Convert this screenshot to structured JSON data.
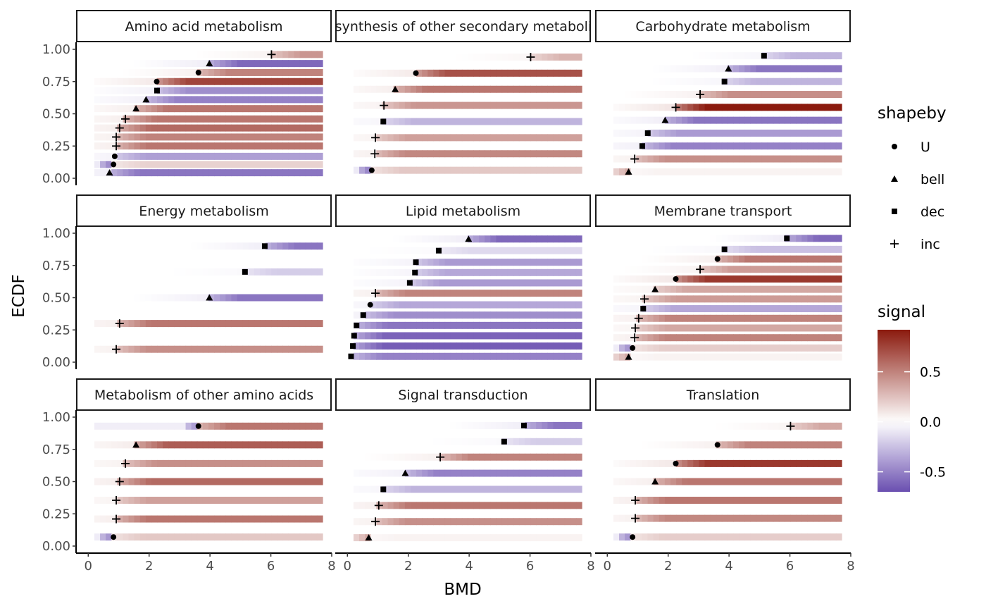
{
  "chart_data": {
    "type": "heatmap",
    "xlabel": "BMD",
    "ylabel": "ECDF",
    "xlim": [
      -0.4,
      8.0
    ],
    "ylim": [
      0.0,
      1.0
    ],
    "x_ticks": [
      "0",
      "2",
      "4",
      "6",
      "8"
    ],
    "y_ticks": [
      "0.00",
      "0.25",
      "0.50",
      "0.75",
      "1.00"
    ],
    "x_range": [
      0.2,
      7.7
    ],
    "grid": false,
    "legend_position": "right",
    "shape_legend": {
      "title": "shapeby",
      "entries": [
        {
          "label": "U",
          "shape": "circle"
        },
        {
          "label": "bell",
          "shape": "triangle"
        },
        {
          "label": "dec",
          "shape": "square"
        },
        {
          "label": "inc",
          "shape": "plus"
        }
      ]
    },
    "color_legend": {
      "title": "signal",
      "min": -0.7,
      "max": 0.92,
      "ticks": [
        0.5,
        0.0,
        -0.5
      ],
      "tick_labels": [
        "0.5",
        "0.0",
        "-0.5"
      ],
      "low_color": "#6a4fb0",
      "mid_color": "#ffffff",
      "high_color": "#8b1a0e"
    },
    "panels": [
      {
        "title": "Amino acid metabolism",
        "rows": [
          {
            "y": 0.043,
            "bmd": 0.7,
            "shape": "bell",
            "signal": -0.55
          },
          {
            "y": 0.107,
            "bmd": 0.83,
            "shape": "U",
            "signal": 0.18,
            "pre": -0.55
          },
          {
            "y": 0.17,
            "bmd": 0.87,
            "shape": "U",
            "signal": -0.38
          },
          {
            "y": 0.25,
            "bmd": 0.92,
            "shape": "inc",
            "signal": 0.55
          },
          {
            "y": 0.32,
            "bmd": 0.92,
            "shape": "inc",
            "signal": 0.5
          },
          {
            "y": 0.39,
            "bmd": 1.03,
            "shape": "inc",
            "signal": 0.6
          },
          {
            "y": 0.46,
            "bmd": 1.22,
            "shape": "inc",
            "signal": 0.55
          },
          {
            "y": 0.54,
            "bmd": 1.57,
            "shape": "bell",
            "signal": 0.55
          },
          {
            "y": 0.61,
            "bmd": 1.9,
            "shape": "bell",
            "signal": -0.5
          },
          {
            "y": 0.68,
            "bmd": 2.26,
            "shape": "dec",
            "signal": -0.45
          },
          {
            "y": 0.75,
            "bmd": 2.25,
            "shape": "U",
            "signal": 0.75
          },
          {
            "y": 0.82,
            "bmd": 3.62,
            "shape": "U",
            "signal": 0.5
          },
          {
            "y": 0.89,
            "bmd": 3.98,
            "shape": "bell",
            "signal": -0.6
          },
          {
            "y": 0.96,
            "bmd": 6.02,
            "shape": "inc",
            "signal": 0.42
          }
        ]
      },
      {
        "title": "Biosynthesis of other secondary metabolites",
        "rows": [
          {
            "y": 0.062,
            "bmd": 0.8,
            "shape": "U",
            "signal": 0.22,
            "pre": -0.55
          },
          {
            "y": 0.19,
            "bmd": 0.9,
            "shape": "inc",
            "signal": 0.48
          },
          {
            "y": 0.315,
            "bmd": 0.92,
            "shape": "inc",
            "signal": 0.38
          },
          {
            "y": 0.44,
            "bmd": 1.18,
            "shape": "dec",
            "signal": -0.3
          },
          {
            "y": 0.565,
            "bmd": 1.2,
            "shape": "inc",
            "signal": 0.42
          },
          {
            "y": 0.69,
            "bmd": 1.57,
            "shape": "bell",
            "signal": 0.55
          },
          {
            "y": 0.815,
            "bmd": 2.25,
            "shape": "U",
            "signal": 0.7
          },
          {
            "y": 0.94,
            "bmd": 6.02,
            "shape": "inc",
            "signal": 0.3
          }
        ]
      },
      {
        "title": "Carbohydrate metabolism",
        "rows": [
          {
            "y": 0.05,
            "bmd": 0.7,
            "shape": "bell",
            "signal": 0.05,
            "pre": 0.35
          },
          {
            "y": 0.15,
            "bmd": 0.9,
            "shape": "inc",
            "signal": 0.45
          },
          {
            "y": 0.25,
            "bmd": 1.15,
            "shape": "dec",
            "signal": -0.5
          },
          {
            "y": 0.35,
            "bmd": 1.33,
            "shape": "dec",
            "signal": -0.4
          },
          {
            "y": 0.45,
            "bmd": 1.9,
            "shape": "bell",
            "signal": -0.55
          },
          {
            "y": 0.55,
            "bmd": 2.25,
            "shape": "inc",
            "signal": 0.92
          },
          {
            "y": 0.65,
            "bmd": 3.05,
            "shape": "inc",
            "signal": 0.45
          },
          {
            "y": 0.75,
            "bmd": 3.85,
            "shape": "dec",
            "signal": -0.3
          },
          {
            "y": 0.85,
            "bmd": 3.98,
            "shape": "bell",
            "signal": -0.55
          },
          {
            "y": 0.95,
            "bmd": 5.15,
            "shape": "dec",
            "signal": -0.3
          }
        ]
      },
      {
        "title": "Energy metabolism",
        "rows": [
          {
            "y": 0.1,
            "bmd": 0.92,
            "shape": "inc",
            "signal": 0.45
          },
          {
            "y": 0.3,
            "bmd": 1.03,
            "shape": "inc",
            "signal": 0.55
          },
          {
            "y": 0.5,
            "bmd": 3.98,
            "shape": "bell",
            "signal": -0.55
          },
          {
            "y": 0.7,
            "bmd": 5.15,
            "shape": "dec",
            "signal": -0.2
          },
          {
            "y": 0.9,
            "bmd": 5.8,
            "shape": "dec",
            "signal": -0.55
          }
        ]
      },
      {
        "title": "Lipid metabolism",
        "rows": [
          {
            "y": 0.045,
            "bmd": 0.12,
            "shape": "dec",
            "signal": -0.5
          },
          {
            "y": 0.125,
            "bmd": 0.18,
            "shape": "dec",
            "signal": -0.65
          },
          {
            "y": 0.205,
            "bmd": 0.22,
            "shape": "dec",
            "signal": -0.62
          },
          {
            "y": 0.285,
            "bmd": 0.3,
            "shape": "dec",
            "signal": -0.55
          },
          {
            "y": 0.365,
            "bmd": 0.52,
            "shape": "dec",
            "signal": -0.45
          },
          {
            "y": 0.445,
            "bmd": 0.75,
            "shape": "U",
            "signal": -0.35
          },
          {
            "y": 0.535,
            "bmd": 0.92,
            "shape": "inc",
            "signal": 0.5
          },
          {
            "y": 0.615,
            "bmd": 2.05,
            "shape": "dec",
            "signal": -0.4
          },
          {
            "y": 0.695,
            "bmd": 2.22,
            "shape": "dec",
            "signal": -0.35
          },
          {
            "y": 0.775,
            "bmd": 2.25,
            "shape": "dec",
            "signal": -0.4
          },
          {
            "y": 0.865,
            "bmd": 3.0,
            "shape": "dec",
            "signal": -0.15
          },
          {
            "y": 0.955,
            "bmd": 3.98,
            "shape": "bell",
            "signal": -0.6
          }
        ]
      },
      {
        "title": "Membrane transport",
        "rows": [
          {
            "y": 0.04,
            "bmd": 0.7,
            "shape": "bell",
            "signal": 0.05,
            "pre": 0.35
          },
          {
            "y": 0.11,
            "bmd": 0.83,
            "shape": "U",
            "signal": 0.2,
            "pre": -0.5
          },
          {
            "y": 0.19,
            "bmd": 0.9,
            "shape": "inc",
            "signal": 0.5
          },
          {
            "y": 0.265,
            "bmd": 0.92,
            "shape": "inc",
            "signal": 0.35
          },
          {
            "y": 0.34,
            "bmd": 1.03,
            "shape": "inc",
            "signal": 0.5
          },
          {
            "y": 0.415,
            "bmd": 1.18,
            "shape": "dec",
            "signal": -0.35
          },
          {
            "y": 0.49,
            "bmd": 1.22,
            "shape": "inc",
            "signal": 0.4
          },
          {
            "y": 0.565,
            "bmd": 1.57,
            "shape": "bell",
            "signal": 0.35
          },
          {
            "y": 0.645,
            "bmd": 2.25,
            "shape": "U",
            "signal": 0.8
          },
          {
            "y": 0.72,
            "bmd": 3.05,
            "shape": "inc",
            "signal": 0.4
          },
          {
            "y": 0.8,
            "bmd": 3.62,
            "shape": "U",
            "signal": 0.55
          },
          {
            "y": 0.875,
            "bmd": 3.85,
            "shape": "dec",
            "signal": -0.25
          },
          {
            "y": 0.96,
            "bmd": 5.9,
            "shape": "dec",
            "signal": -0.6
          }
        ]
      },
      {
        "title": "Metabolism of other amino acids",
        "rows": [
          {
            "y": 0.07,
            "bmd": 0.83,
            "shape": "U",
            "signal": 0.22,
            "pre": -0.5
          },
          {
            "y": 0.21,
            "bmd": 0.92,
            "shape": "inc",
            "signal": 0.55
          },
          {
            "y": 0.355,
            "bmd": 0.92,
            "shape": "inc",
            "signal": 0.38
          },
          {
            "y": 0.5,
            "bmd": 1.03,
            "shape": "inc",
            "signal": 0.6
          },
          {
            "y": 0.64,
            "bmd": 1.22,
            "shape": "inc",
            "signal": 0.45
          },
          {
            "y": 0.785,
            "bmd": 1.57,
            "shape": "bell",
            "signal": 0.65
          },
          {
            "y": 0.93,
            "bmd": 3.62,
            "shape": "U",
            "signal": 0.55,
            "pre": -0.45
          }
        ]
      },
      {
        "title": "Signal transduction",
        "rows": [
          {
            "y": 0.065,
            "bmd": 0.7,
            "shape": "bell",
            "signal": 0.05,
            "pre": 0.35
          },
          {
            "y": 0.19,
            "bmd": 0.92,
            "shape": "inc",
            "signal": 0.45
          },
          {
            "y": 0.315,
            "bmd": 1.03,
            "shape": "inc",
            "signal": 0.55
          },
          {
            "y": 0.44,
            "bmd": 1.18,
            "shape": "dec",
            "signal": -0.3
          },
          {
            "y": 0.565,
            "bmd": 1.9,
            "shape": "bell",
            "signal": -0.5
          },
          {
            "y": 0.69,
            "bmd": 3.05,
            "shape": "inc",
            "signal": 0.5
          },
          {
            "y": 0.81,
            "bmd": 5.15,
            "shape": "dec",
            "signal": -0.2
          },
          {
            "y": 0.935,
            "bmd": 5.8,
            "shape": "dec",
            "signal": -0.55
          }
        ]
      },
      {
        "title": "Translation",
        "rows": [
          {
            "y": 0.07,
            "bmd": 0.83,
            "shape": "U",
            "signal": 0.2,
            "pre": -0.5
          },
          {
            "y": 0.215,
            "bmd": 0.92,
            "shape": "inc",
            "signal": 0.48
          },
          {
            "y": 0.355,
            "bmd": 0.92,
            "shape": "inc",
            "signal": 0.55
          },
          {
            "y": 0.5,
            "bmd": 1.57,
            "shape": "bell",
            "signal": 0.55
          },
          {
            "y": 0.64,
            "bmd": 2.25,
            "shape": "U",
            "signal": 0.8
          },
          {
            "y": 0.785,
            "bmd": 3.62,
            "shape": "U",
            "signal": 0.5
          },
          {
            "y": 0.93,
            "bmd": 6.02,
            "shape": "inc",
            "signal": 0.35
          }
        ]
      }
    ]
  }
}
